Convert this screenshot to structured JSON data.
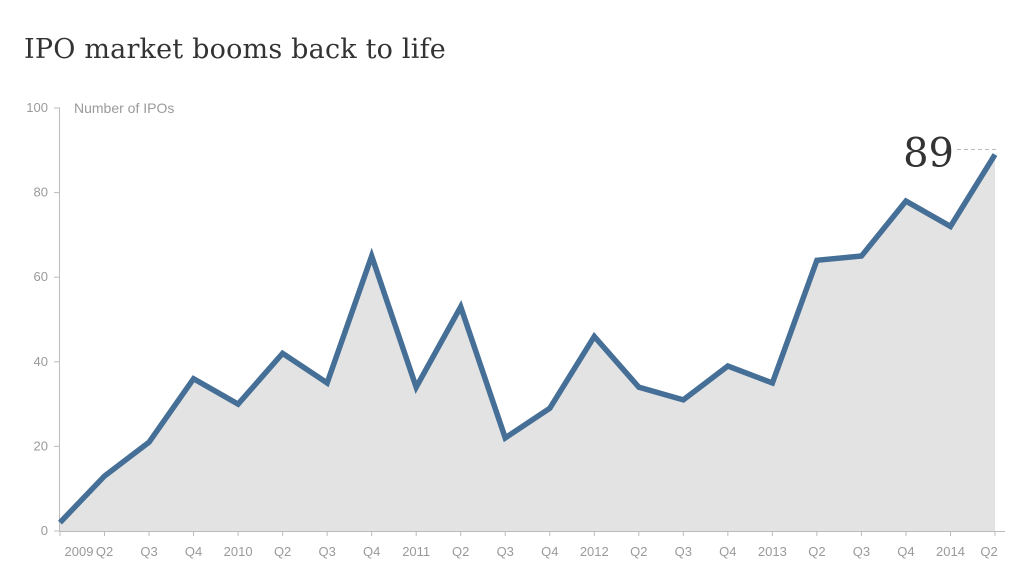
{
  "title": "IPO market booms back to life",
  "chart_data": {
    "type": "area",
    "title": "IPO market booms back to life",
    "ylabel": "Number of IPOs",
    "xlabel": "",
    "ylim": [
      0,
      100
    ],
    "yticks": [
      0,
      20,
      40,
      60,
      80,
      100
    ],
    "categories": [
      "2009",
      "Q2",
      "Q3",
      "Q4",
      "2010",
      "Q2",
      "Q3",
      "Q4",
      "2011",
      "Q2",
      "Q3",
      "Q4",
      "2012",
      "Q2",
      "Q3",
      "Q4",
      "2013",
      "Q2",
      "Q3",
      "Q4",
      "2014",
      "Q2"
    ],
    "series": [
      {
        "values": [
          2,
          13,
          21,
          36,
          30,
          42,
          35,
          65,
          34,
          53,
          22,
          29,
          46,
          34,
          31,
          39,
          35,
          64,
          65,
          78,
          72,
          89
        ]
      }
    ],
    "annotation": {
      "text": "89",
      "category_index": 21
    },
    "grid": false,
    "colors": {
      "line": "#456f96",
      "fill": "#e3e3e3",
      "axis": "#bbbbbb",
      "text": "#9a9a9a"
    }
  }
}
